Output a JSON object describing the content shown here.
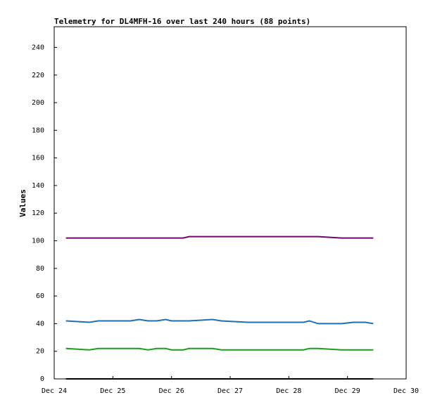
{
  "chart_data": {
    "type": "line",
    "title": "Telemetry for DL4MFH-16 over last 240 hours (88 points)",
    "y_label": "Values",
    "x": [
      24.2,
      24.6,
      24.75,
      25.3,
      25.45,
      25.6,
      25.75,
      25.9,
      26.0,
      26.2,
      26.3,
      26.7,
      26.85,
      27.3,
      28.25,
      28.35,
      28.5,
      28.9,
      29.1,
      29.3,
      29.44
    ],
    "xlim": [
      24,
      30
    ],
    "xticks": [
      {
        "value": 24,
        "label": "Dec 24"
      },
      {
        "value": 25,
        "label": "Dec 25"
      },
      {
        "value": 26,
        "label": "Dec 26"
      },
      {
        "value": 27,
        "label": "Dec 27"
      },
      {
        "value": 28,
        "label": "Dec 28"
      },
      {
        "value": 29,
        "label": "Dec 29"
      },
      {
        "value": 30,
        "label": "Dec 30"
      }
    ],
    "ylim": [
      0,
      255
    ],
    "yticks": [
      0,
      20,
      40,
      60,
      80,
      100,
      120,
      140,
      160,
      180,
      200,
      220,
      240
    ],
    "series": [
      {
        "color": "#6e0a6e",
        "values": [
          102,
          102,
          102,
          102,
          102,
          102,
          102,
          102,
          102,
          102,
          103,
          103,
          103,
          103,
          103,
          103,
          103,
          102,
          102,
          102,
          102
        ]
      },
      {
        "color": "#1f6fb5",
        "values": [
          42,
          41,
          42,
          42,
          43,
          42,
          42,
          43,
          42,
          42,
          42,
          43,
          42,
          41,
          41,
          42,
          40,
          40,
          41,
          41,
          40
        ]
      },
      {
        "color": "#1aa01a",
        "values": [
          22,
          21,
          22,
          22,
          22,
          21,
          22,
          22,
          21,
          21,
          22,
          22,
          21,
          21,
          21,
          22,
          22,
          21,
          21,
          21,
          21
        ]
      },
      {
        "color": "#000000",
        "values": [
          0,
          0,
          0,
          0,
          0,
          0,
          0,
          0,
          0,
          0,
          0,
          0,
          0,
          0,
          0,
          0,
          0,
          0,
          0,
          0,
          0
        ]
      }
    ]
  }
}
